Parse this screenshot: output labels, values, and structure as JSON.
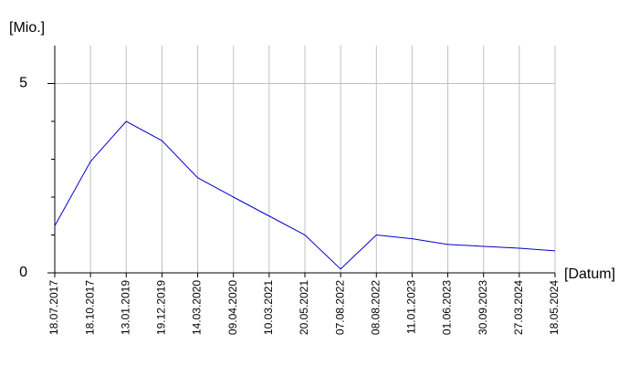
{
  "chart_data": {
    "type": "line",
    "y_label": "[Mio.]",
    "x_label": "[Datum]",
    "categories": [
      "18.07.2017",
      "18.10.2017",
      "13.01.2019",
      "19.12.2019",
      "14.03.2020",
      "09.04.2020",
      "10.03.2021",
      "20.05.2021",
      "07.08.2022",
      "08.08.2022",
      "11.01.2023",
      "01.06.2023",
      "30.09.2023",
      "27.03.2024",
      "18.05.2024"
    ],
    "series": [
      {
        "color": "#0000cc",
        "values": [
          1.24,
          2.94,
          4.0,
          3.49,
          2.51,
          2.0,
          1.5,
          1.0,
          0.1,
          1.0,
          0.9,
          0.75,
          0.7,
          0.65,
          0.58
        ]
      }
    ],
    "ylim": [
      0,
      6
    ],
    "yticks": [
      0,
      5
    ],
    "minor_yticks": [
      1,
      2,
      3,
      4
    ],
    "grid": true
  }
}
